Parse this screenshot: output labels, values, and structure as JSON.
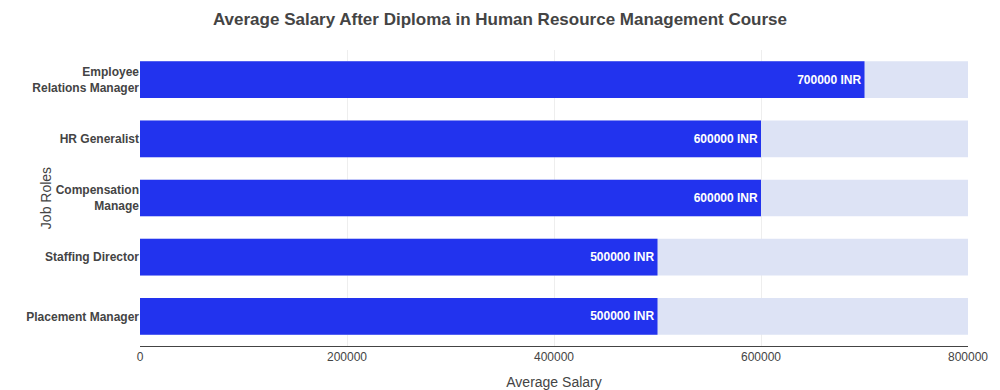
{
  "chart_data": {
    "type": "bar",
    "orientation": "horizontal",
    "title": "Average Salary After Diploma in Human Resource Management Course",
    "x_label": "Average Salary",
    "y_label": "Job Roles",
    "categories": [
      "Placement Manager",
      "Staffing Director",
      "Compensation\nManage",
      "HR Generalist",
      "Employee\nRelations Manager"
    ],
    "values": [
      500000,
      500000,
      600000,
      600000,
      700000
    ],
    "value_labels": [
      "500000 INR",
      "500000 INR",
      "600000 INR",
      "600000 INR",
      "700000 INR"
    ],
    "data_labels": true,
    "color": "#2233ee",
    "xlim": [
      0,
      800000
    ],
    "xticks": [
      0,
      200000,
      400000,
      600000,
      800000
    ],
    "grid": true
  }
}
